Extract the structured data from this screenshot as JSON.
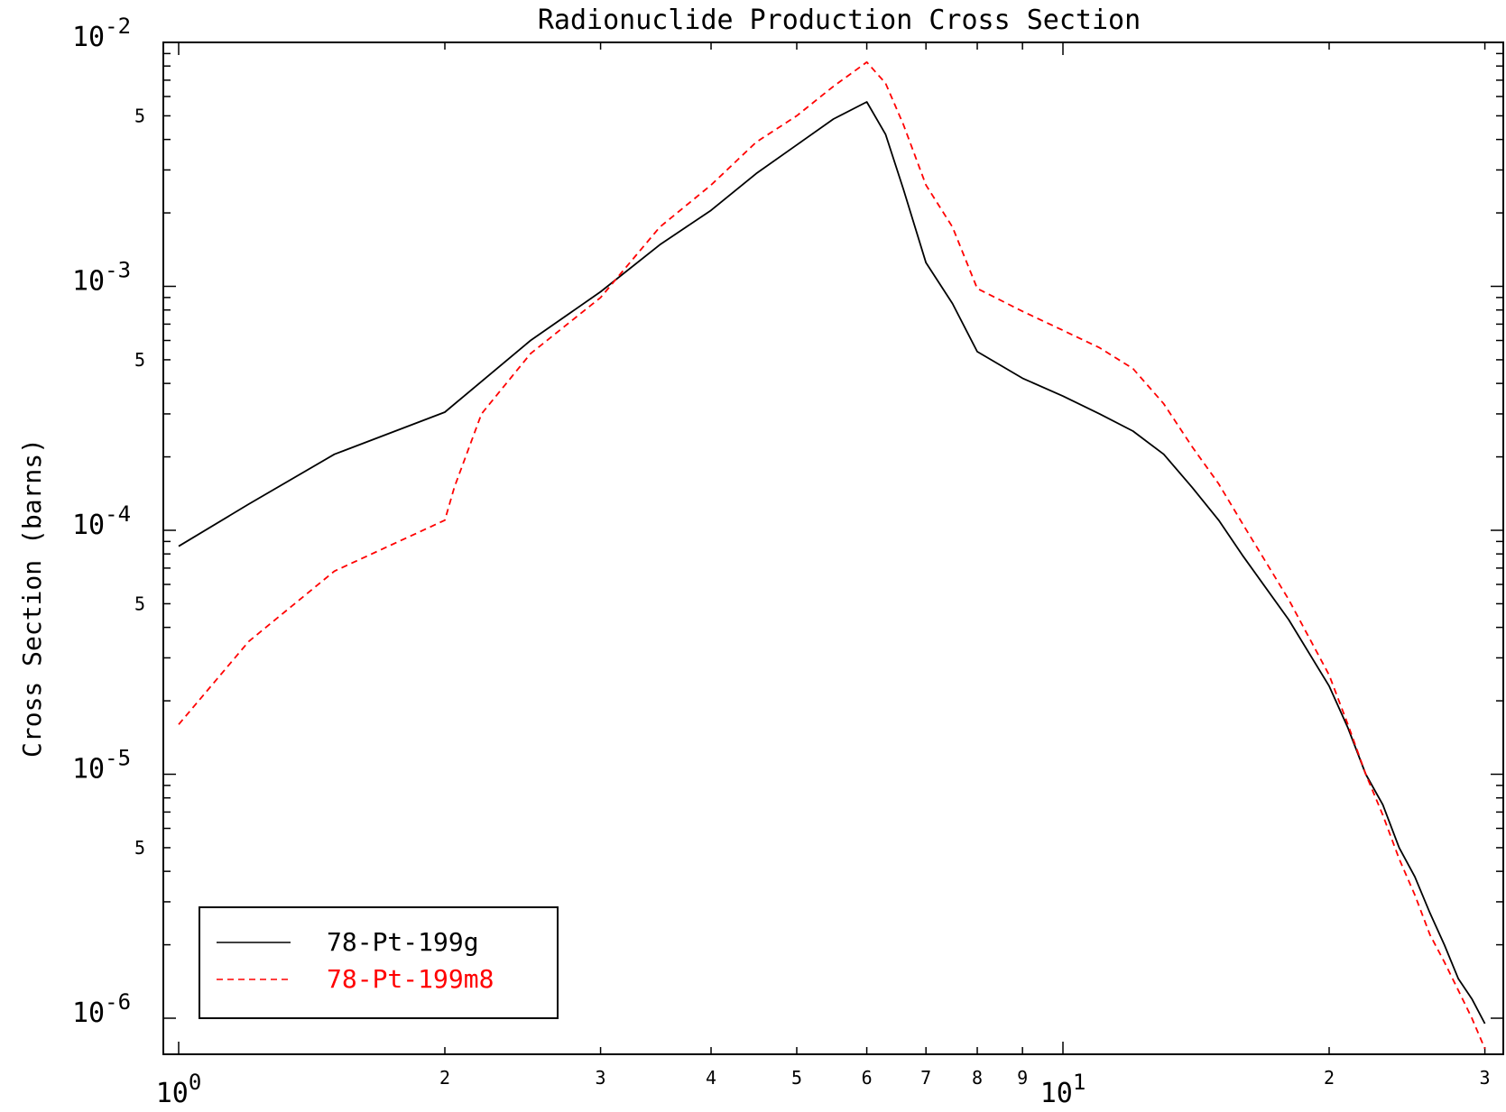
{
  "chart_data": {
    "type": "line",
    "title": "Radionuclide Production Cross Section",
    "xlabel": "",
    "ylabel": "Cross Section (barns)",
    "xscale": "log",
    "yscale": "log",
    "xlim": [
      0.95,
      31
    ],
    "ylim": [
      7e-07,
      0.01
    ],
    "grid": false,
    "legend_position": "bottom-left",
    "x_major_ticks": [
      {
        "value": 1,
        "base": "10",
        "exp": "0"
      },
      {
        "value": 10,
        "base": "10",
        "exp": "1"
      }
    ],
    "x_minor_ticks": [
      {
        "value": 2,
        "label": "2"
      },
      {
        "value": 3,
        "label": "3"
      },
      {
        "value": 4,
        "label": "4"
      },
      {
        "value": 5,
        "label": "5"
      },
      {
        "value": 6,
        "label": "6"
      },
      {
        "value": 7,
        "label": "7"
      },
      {
        "value": 8,
        "label": "8"
      },
      {
        "value": 9,
        "label": "9"
      },
      {
        "value": 20,
        "label": "2"
      },
      {
        "value": 30,
        "label": "3"
      }
    ],
    "y_major_ticks": [
      {
        "value": 0.01,
        "base": "10",
        "exp": "-2"
      },
      {
        "value": 0.001,
        "base": "10",
        "exp": "-3"
      },
      {
        "value": 0.0001,
        "base": "10",
        "exp": "-4"
      },
      {
        "value": 1e-05,
        "base": "10",
        "exp": "-5"
      },
      {
        "value": 1e-06,
        "base": "10",
        "exp": "-6"
      }
    ],
    "y_minor_labels": [
      {
        "value": 0.005,
        "label": "5"
      },
      {
        "value": 0.0005,
        "label": "5"
      },
      {
        "value": 5e-05,
        "label": "5"
      },
      {
        "value": 5e-06,
        "label": "5"
      }
    ],
    "series": [
      {
        "name": "78-Pt-199g",
        "color": "#000000",
        "dash": "solid",
        "x": [
          1.0,
          1.2,
          1.5,
          2.0,
          2.5,
          3.0,
          3.5,
          4.0,
          4.5,
          5.0,
          5.5,
          6.0,
          6.3,
          6.6,
          7.0,
          7.5,
          8.0,
          9.0,
          10,
          11,
          12,
          13,
          14,
          15,
          16,
          18,
          20,
          21,
          22,
          23,
          24,
          25,
          26,
          27,
          28,
          29,
          30
        ],
        "y": [
          8.6e-05,
          0.000128,
          0.000205,
          0.000305,
          0.0006,
          0.00095,
          0.00148,
          0.00205,
          0.0029,
          0.0038,
          0.00485,
          0.0057,
          0.0042,
          0.0025,
          0.00125,
          0.00085,
          0.00054,
          0.00042,
          0.000355,
          0.0003,
          0.000255,
          0.000205,
          0.00015,
          0.00011,
          7.8e-05,
          4.3e-05,
          2.3e-05,
          1.55e-05,
          1e-05,
          7.5e-06,
          5e-06,
          3.8e-06,
          2.7e-06,
          2e-06,
          1.45e-06,
          1.2e-06,
          9.5e-07
        ]
      },
      {
        "name": "78-Pt-199m8",
        "color": "#ff0000",
        "dash": "dashed",
        "x": [
          1.0,
          1.2,
          1.5,
          2.0,
          2.05,
          2.2,
          2.5,
          3.0,
          3.5,
          4.0,
          4.5,
          5.0,
          5.5,
          6.0,
          6.3,
          6.6,
          7.0,
          7.5,
          8.0,
          9.0,
          10,
          11,
          12,
          13,
          14,
          15,
          16,
          18,
          20,
          21,
          22,
          23,
          24,
          25,
          26,
          27,
          28,
          29,
          30
        ],
        "y": [
          1.6e-05,
          3.5e-05,
          6.8e-05,
          0.00011,
          0.00015,
          0.0003,
          0.00053,
          0.0009,
          0.00175,
          0.0026,
          0.0039,
          0.005,
          0.0066,
          0.0083,
          0.0068,
          0.0046,
          0.0026,
          0.00175,
          0.00098,
          0.00079,
          0.00066,
          0.00056,
          0.00046,
          0.00033,
          0.00022,
          0.000155,
          0.000105,
          5.2e-05,
          2.55e-05,
          1.6e-05,
          1e-05,
          6.8e-06,
          4.5e-06,
          3.2e-06,
          2.2e-06,
          1.7e-06,
          1.3e-06,
          1e-06,
          7.5e-07
        ]
      }
    ]
  }
}
